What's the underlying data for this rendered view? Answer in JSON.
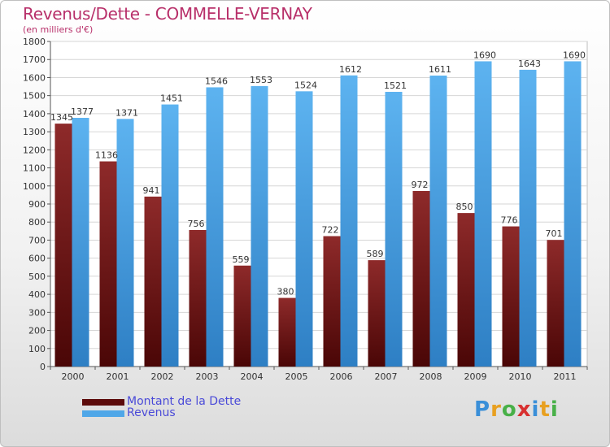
{
  "header": {
    "title": "Revenus/Dette - COMMELLE-VERNAY",
    "subtitle": "(en milliers d'€)"
  },
  "chart_data": {
    "type": "bar",
    "categories": [
      "2000",
      "2001",
      "2002",
      "2003",
      "2004",
      "2005",
      "2006",
      "2007",
      "2008",
      "2009",
      "2010",
      "2011"
    ],
    "series": [
      {
        "name": "Montant de la Dette",
        "color": "#7a1c1c",
        "values": [
          1345,
          1136,
          941,
          756,
          559,
          380,
          722,
          589,
          972,
          850,
          776,
          701
        ]
      },
      {
        "name": "Revenus",
        "color": "#4fa7e8",
        "values": [
          1377,
          1371,
          1451,
          1546,
          1553,
          1524,
          1612,
          1521,
          1611,
          1690,
          1643,
          1690
        ]
      }
    ],
    "ylim": [
      0,
      1800
    ],
    "yticks": [
      0,
      100,
      200,
      300,
      400,
      500,
      600,
      700,
      800,
      900,
      1000,
      1100,
      1200,
      1300,
      1400,
      1500,
      1600,
      1700,
      1800
    ],
    "grid": true,
    "legend": "bottom-left"
  },
  "legend": {
    "items": [
      {
        "label": "Montant de la Dette",
        "color": "#5c0a0a"
      },
      {
        "label": "Revenus",
        "color": "#4fa7e8"
      }
    ]
  },
  "logo": {
    "letters": [
      "P",
      "r",
      "o",
      "x",
      "i",
      "t",
      "i"
    ],
    "colors": [
      "#3a8fd8",
      "#e8a020",
      "#48b048",
      "#d83030",
      "#3a8fd8",
      "#e8a020",
      "#48b048"
    ]
  }
}
